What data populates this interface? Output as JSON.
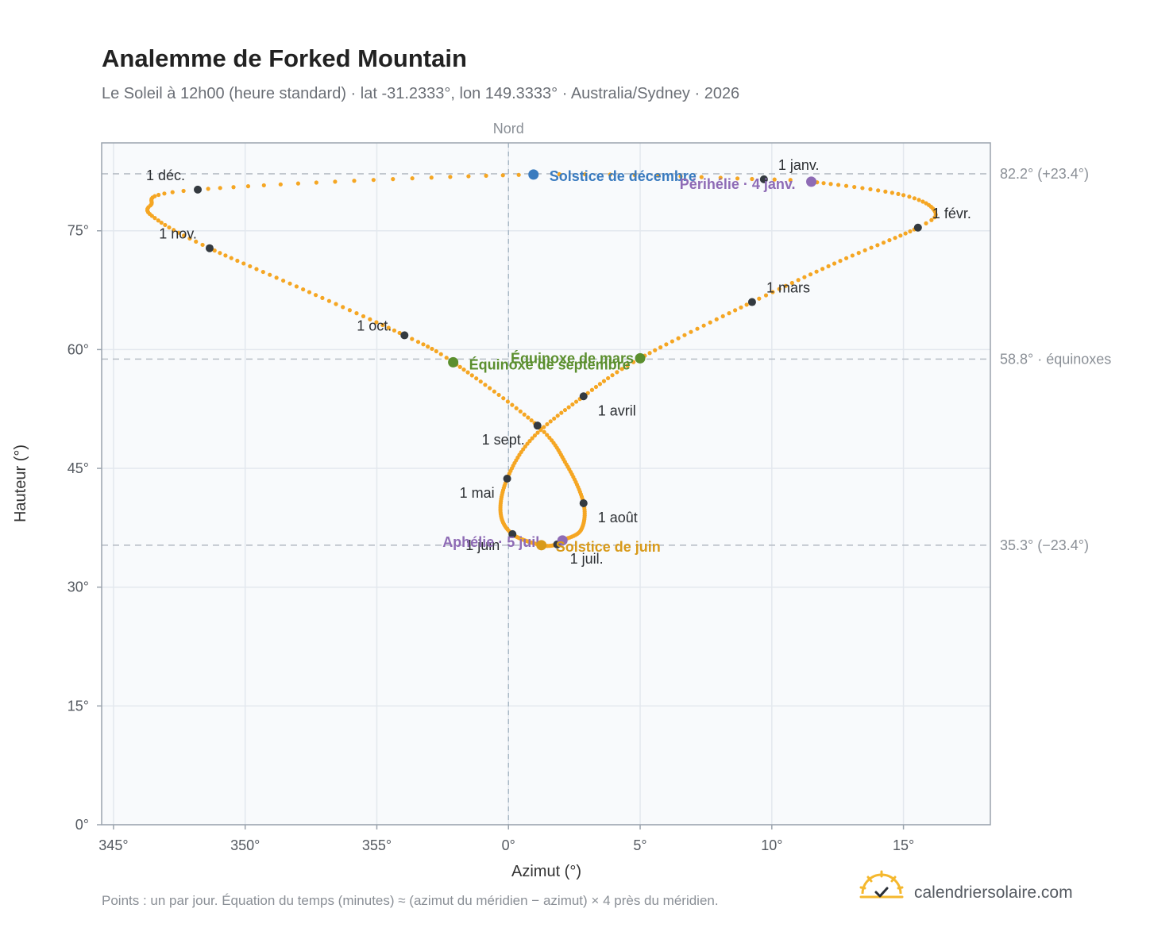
{
  "title": "Analemme de Forked Mountain",
  "subtitle": "Le Soleil à 12h00 (heure standard) · lat -31.2333°, lon 149.3333° · Australia/Sydney · 2026",
  "footnote": "Points : un par jour. Équation du temps (minutes) ≈ (azimut du méridien − azimut) × 4 près du méridien.",
  "brand": {
    "name": "calendriersolaire.com",
    "icon": "sun-check-icon"
  },
  "colors": {
    "curve": "#f5a623",
    "month_marker": "#343a40",
    "solstice_december": "#3a7bbf",
    "solstice_june": "#d89a1a",
    "equinox": "#5b8f2e",
    "perihelion_aphelion": "#8e6bb5",
    "plot_bg": "#f8fafc",
    "grid": "#e3e8ee",
    "reference_line": "#b8bec6",
    "frame": "#9aa3ad"
  },
  "chart_data": {
    "type": "scatter",
    "title": "Analemme de Forked Mountain",
    "subtitle": "Le Soleil à 12h00 (heure standard) · lat -31.2333°, lon 149.3333° · Australia/Sydney · 2026",
    "xlabel": "Azimut (°)",
    "ylabel": "Hauteur (°)",
    "xlim": [
      344.55,
      18.3
    ],
    "ylim": [
      0,
      86.1
    ],
    "x_ticks": [
      345,
      350,
      355,
      0,
      5,
      10,
      15
    ],
    "x_tick_labels": [
      "345°",
      "350°",
      "355°",
      "0°",
      "5°",
      "10°",
      "15°"
    ],
    "y_ticks": [
      0,
      15,
      30,
      45,
      60,
      75
    ],
    "y_tick_labels": [
      "0°",
      "15°",
      "30°",
      "45°",
      "60°",
      "75°"
    ],
    "grid": true,
    "north_line": {
      "x": 0,
      "label": "Nord"
    },
    "reference_lines": [
      {
        "y": 82.2,
        "label": "82.2° (+23.4°)"
      },
      {
        "y": 58.8,
        "label": "58.8° · équinoxes"
      },
      {
        "y": 35.3,
        "label": "35.3° (−23.4°)"
      }
    ],
    "month_points": [
      {
        "label": "1 janv.",
        "azimuth": 9.7,
        "altitude": 81.5
      },
      {
        "label": "1 févr.",
        "azimuth": 15.55,
        "altitude": 75.4
      },
      {
        "label": "1 mars",
        "azimuth": 9.25,
        "altitude": 66.0
      },
      {
        "label": "1 avril",
        "azimuth": 2.85,
        "altitude": 54.1
      },
      {
        "label": "1 mai",
        "azimuth": -0.05,
        "altitude": 43.7
      },
      {
        "label": "1 juin",
        "azimuth": 0.15,
        "altitude": 36.7
      },
      {
        "label": "1 juil.",
        "azimuth": 1.85,
        "altitude": 35.4
      },
      {
        "label": "1 août",
        "azimuth": 2.85,
        "altitude": 40.6
      },
      {
        "label": "1 sept.",
        "azimuth": 1.1,
        "altitude": 50.4
      },
      {
        "label": "1 oct.",
        "azimuth": -3.95,
        "altitude": 61.8
      },
      {
        "label": "1 nov.",
        "azimuth": -11.35,
        "altitude": 72.8
      },
      {
        "label": "1 déc.",
        "azimuth": -11.8,
        "altitude": 80.2
      }
    ],
    "events": [
      {
        "label": "Solstice de décembre",
        "azimuth": 0.95,
        "altitude": 82.1,
        "color": "#3a7bbf"
      },
      {
        "label": "Périhélie · 4 janv.",
        "azimuth": 11.5,
        "altitude": 81.2,
        "color": "#8e6bb5"
      },
      {
        "label": "Équinoxe de mars",
        "azimuth": 5.0,
        "altitude": 58.9,
        "color": "#5b8f2e"
      },
      {
        "label": "Équinoxe de septembre",
        "azimuth": -2.1,
        "altitude": 58.4,
        "color": "#5b8f2e"
      },
      {
        "label": "Aphélie · 5 juil.",
        "azimuth": 2.05,
        "altitude": 35.9,
        "color": "#8e6bb5"
      },
      {
        "label": "Solstice de juin",
        "azimuth": 1.25,
        "altitude": 35.3,
        "color": "#d89a1a"
      }
    ],
    "curve_anchor_points": [
      {
        "day": 0,
        "azimuth": 9.7,
        "altitude": 81.5
      },
      {
        "day": 3,
        "azimuth": 11.5,
        "altitude": 81.2
      },
      {
        "day": 16,
        "azimuth": 15.0,
        "altitude": 79.5
      },
      {
        "day": 26,
        "azimuth": 16.2,
        "altitude": 77.4
      },
      {
        "day": 31,
        "azimuth": 15.55,
        "altitude": 75.4
      },
      {
        "day": 45,
        "azimuth": 12.6,
        "altitude": 71.2
      },
      {
        "day": 59,
        "azimuth": 9.25,
        "altitude": 66.0
      },
      {
        "day": 78,
        "azimuth": 5.0,
        "altitude": 58.9
      },
      {
        "day": 90,
        "azimuth": 2.85,
        "altitude": 54.1
      },
      {
        "day": 105,
        "azimuth": 0.9,
        "altitude": 48.8
      },
      {
        "day": 120,
        "azimuth": -0.05,
        "altitude": 43.7
      },
      {
        "day": 136,
        "azimuth": -0.3,
        "altitude": 39.4
      },
      {
        "day": 151,
        "azimuth": 0.15,
        "altitude": 36.7
      },
      {
        "day": 171,
        "azimuth": 1.25,
        "altitude": 35.3
      },
      {
        "day": 181,
        "azimuth": 1.85,
        "altitude": 35.4
      },
      {
        "day": 185,
        "azimuth": 2.05,
        "altitude": 35.9
      },
      {
        "day": 197,
        "azimuth": 2.75,
        "altitude": 37.2
      },
      {
        "day": 212,
        "azimuth": 2.85,
        "altitude": 40.6
      },
      {
        "day": 228,
        "azimuth": 2.2,
        "altitude": 45.5
      },
      {
        "day": 243,
        "azimuth": 1.1,
        "altitude": 50.4
      },
      {
        "day": 264,
        "azimuth": -2.1,
        "altitude": 58.4
      },
      {
        "day": 273,
        "azimuth": -3.95,
        "altitude": 61.8
      },
      {
        "day": 289,
        "azimuth": -7.8,
        "altitude": 67.6
      },
      {
        "day": 304,
        "azimuth": -11.35,
        "altitude": 72.8
      },
      {
        "day": 314,
        "azimuth": -13.3,
        "altitude": 76.3
      },
      {
        "day": 322,
        "azimuth": -13.6,
        "altitude": 78.2
      },
      {
        "day": 334,
        "azimuth": -11.8,
        "altitude": 80.2
      },
      {
        "day": 354,
        "azimuth": 0.95,
        "altitude": 82.1
      },
      {
        "day": 365,
        "azimuth": 9.7,
        "altitude": 81.5
      }
    ]
  }
}
